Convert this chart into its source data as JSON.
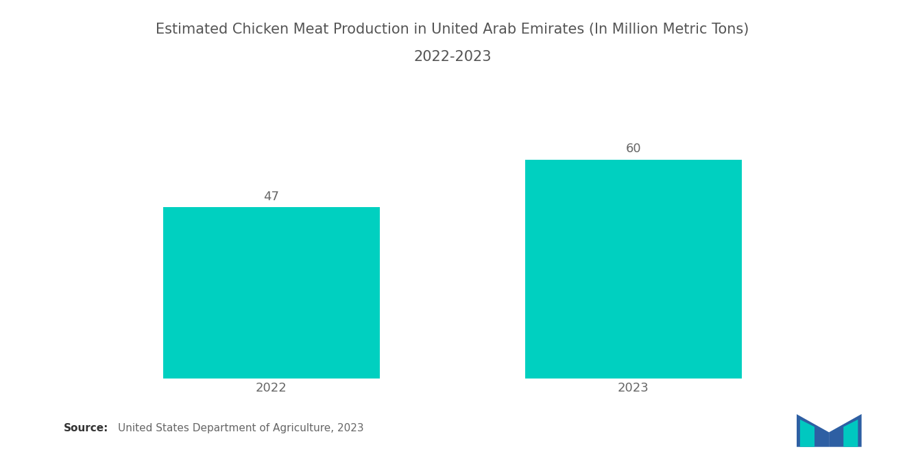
{
  "title_line1": "Estimated Chicken Meat Production in United Arab Emirates (In Million Metric Tons)",
  "title_line2": "2022-2023",
  "categories": [
    "2022",
    "2023"
  ],
  "values": [
    47,
    60
  ],
  "bar_color": "#00D0C0",
  "value_labels": [
    "47",
    "60"
  ],
  "ylim": [
    0,
    75
  ],
  "background_color": "#ffffff",
  "title_color": "#555555",
  "label_color": "#666666",
  "source_text": "United States Department of Agriculture, 2023",
  "source_label": "Source:",
  "title_fontsize": 15,
  "label_fontsize": 13,
  "value_fontsize": 13,
  "source_fontsize": 11,
  "bar_width": 0.6,
  "x_positions": [
    0.0,
    1.0
  ]
}
